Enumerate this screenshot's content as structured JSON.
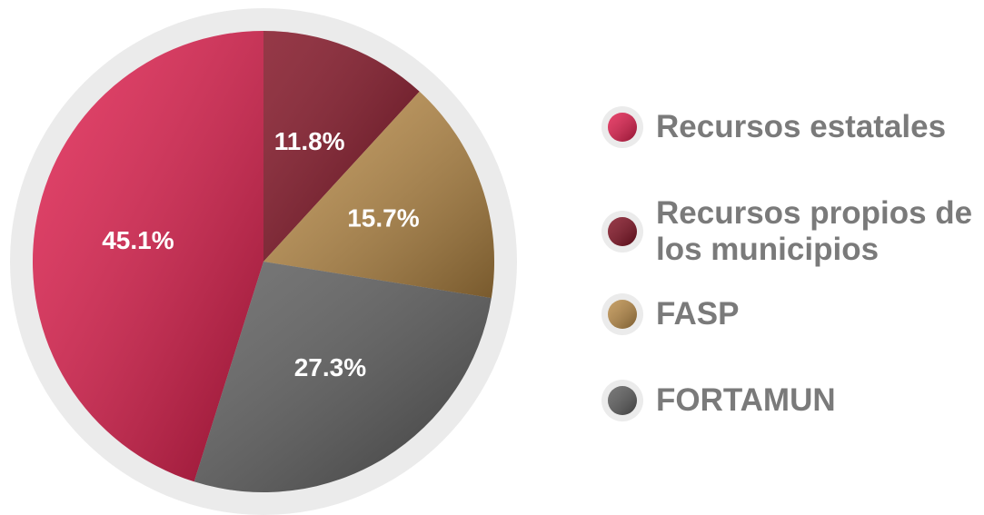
{
  "chart_data": {
    "type": "pie",
    "categories": [
      "Recursos estatales",
      "Recursos propios de los municipios",
      "FASP",
      "FORTAMUN"
    ],
    "values": [
      45.1,
      11.8,
      15.7,
      27.3
    ],
    "value_labels": [
      "45.1%",
      "11.8%",
      "15.7%",
      "27.3%"
    ],
    "colors": [
      "#e01a4a",
      "#7e0c1e",
      "#b98a45",
      "#5a5a5a"
    ],
    "legend": "right"
  }
}
